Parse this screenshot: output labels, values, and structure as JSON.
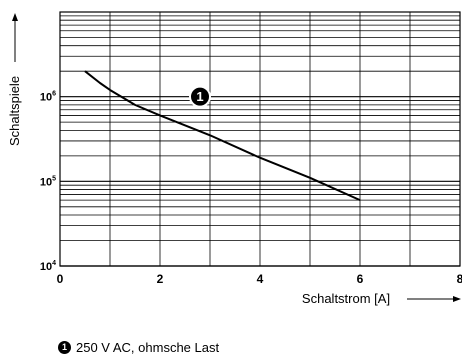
{
  "chart_data": {
    "type": "line",
    "xlabel": "Schaltstrom [A]",
    "ylabel": "Schaltspiele",
    "x_ticks": [
      "0",
      "2",
      "4",
      "6",
      "8"
    ],
    "y_ticks": [
      {
        "base": "10",
        "exp": "4"
      },
      {
        "base": "10",
        "exp": "5"
      },
      {
        "base": "10",
        "exp": "6"
      }
    ],
    "xlim": [
      0,
      8
    ],
    "ylim": [
      10000,
      10000000
    ],
    "y_scale": "log",
    "grid": true,
    "series": [
      {
        "marker": "1",
        "label": "250 V AC, ohmsche Last",
        "x": [
          0.5,
          0.8,
          1.0,
          1.5,
          2.0,
          3.0,
          4.0,
          5.0,
          6.0
        ],
        "y": [
          2000000,
          1450000,
          1200000,
          800000,
          600000,
          350000,
          190000,
          110000,
          60000
        ]
      }
    ],
    "annotation": {
      "text": "1",
      "x": 2.8,
      "y": 1000000
    }
  }
}
